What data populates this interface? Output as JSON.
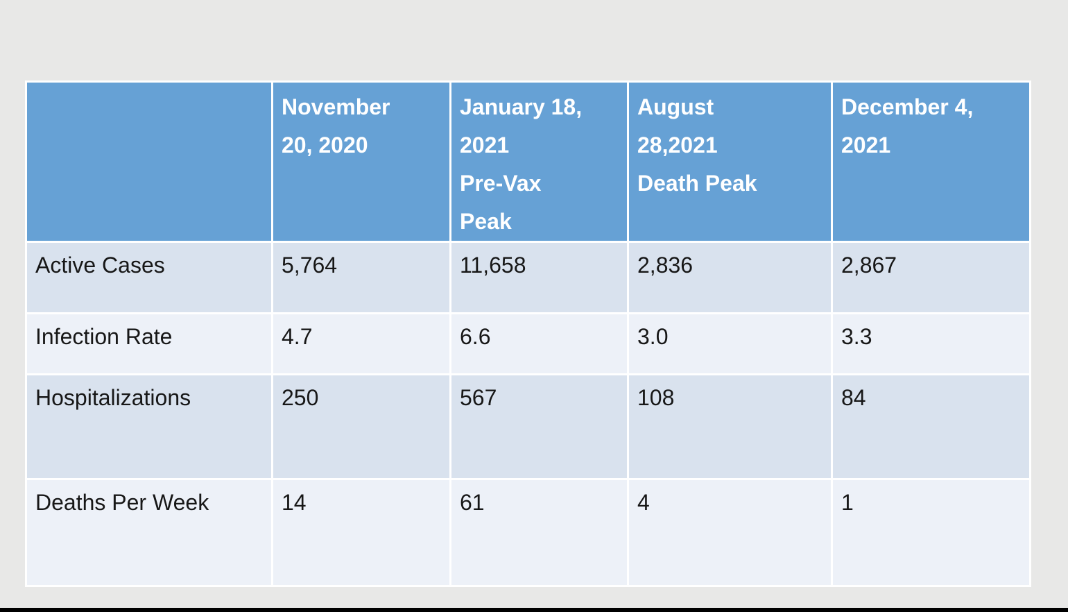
{
  "colors": {
    "page_bg": "#e8e8e7",
    "header_bg": "#66a1d5",
    "band_dark": "#d9e2ee",
    "band_light": "#edf1f8",
    "grid_white": "#ffffff",
    "body_text": "#171717",
    "header_text": "#ffffff",
    "letterbox": "#000000"
  },
  "table": {
    "header_cells": [
      "",
      "November\n20, 2020",
      "January 18,\n2021\nPre-Vax\nPeak",
      "August\n28,2021\nDeath Peak",
      "December 4,\n2021"
    ],
    "rows": [
      {
        "label": "Active Cases",
        "values": [
          "5,764",
          "11,658",
          "2,836",
          "2,867"
        ]
      },
      {
        "label": "Infection Rate",
        "values": [
          "4.7",
          "6.6",
          "3.0",
          "3.3"
        ]
      },
      {
        "label": "Hospitalizations",
        "values": [
          "250",
          "567",
          "108",
          "84"
        ]
      },
      {
        "label": "Deaths Per Week",
        "values": [
          "14",
          "61",
          "4",
          "1"
        ]
      }
    ]
  },
  "chart_data": {
    "type": "table",
    "title": "",
    "columns": [
      "",
      "November 20, 2020",
      "January 18, 2021 Pre-Vax Peak",
      "August 28,2021 Death Peak",
      "December 4, 2021"
    ],
    "rows": [
      [
        "Active Cases",
        "5,764",
        "11,658",
        "2,836",
        "2,867"
      ],
      [
        "Infection Rate",
        "4.7",
        "6.6",
        "3.0",
        "3.3"
      ],
      [
        "Hospitalizations",
        "250",
        "567",
        "108",
        "84"
      ],
      [
        "Deaths Per Week",
        "14",
        "61",
        "4",
        "1"
      ]
    ],
    "layout_hints": {
      "header_row_color": "#66a1d5",
      "banded_rows": true,
      "grid_lines": "white",
      "letterbox_bar_bottom": true
    }
  }
}
